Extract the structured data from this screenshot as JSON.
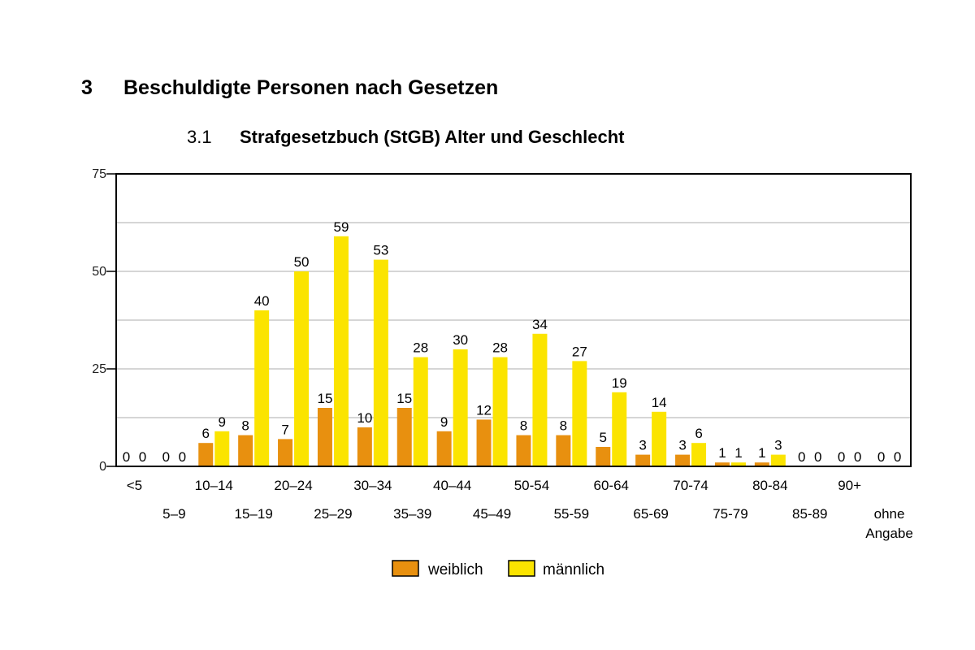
{
  "heading": {
    "number": "3",
    "title": "Beschuldigte Personen nach Gesetzen"
  },
  "subheading": {
    "number": "3.1",
    "title": "Strafgesetzbuch (StGB) Alter und Geschlecht"
  },
  "colors": {
    "weiblich": "#E8900F",
    "maennlich": "#FBE400",
    "grid": "#c8c8c8",
    "axis": "#000000"
  },
  "chart_data": {
    "type": "bar",
    "title": "",
    "xlabel": "",
    "ylabel": "",
    "ylim": [
      0,
      75
    ],
    "yticks": [
      0,
      25,
      50,
      75
    ],
    "gridlines": [
      12.5,
      25,
      37.5,
      50,
      62.5,
      75
    ],
    "grid": true,
    "legend_position": "bottom",
    "categories": [
      "<5",
      "5–9",
      "10–14",
      "15–19",
      "20–24",
      "25–29",
      "30–34",
      "35–39",
      "40–44",
      "45–49",
      "50-54",
      "55-59",
      "60-64",
      "65-69",
      "70-74",
      "75-79",
      "80-84",
      "85-89",
      "90+",
      "ohne Angabe"
    ],
    "series": [
      {
        "name": "weiblich",
        "values": [
          0,
          0,
          6,
          8,
          7,
          15,
          10,
          15,
          9,
          12,
          8,
          8,
          5,
          3,
          3,
          1,
          1,
          0,
          0,
          0
        ]
      },
      {
        "name": "männlich",
        "values": [
          0,
          0,
          9,
          40,
          50,
          59,
          53,
          28,
          30,
          28,
          34,
          27,
          19,
          14,
          6,
          1,
          3,
          0,
          0,
          0
        ]
      }
    ]
  }
}
